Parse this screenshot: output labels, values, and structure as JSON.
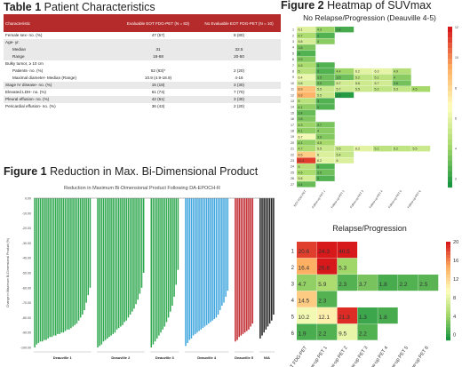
{
  "table1": {
    "title_bold": "Table 1",
    "title_rest": " Patient Characteristics",
    "headers": [
      "Characteristic",
      "Evaluable EOT FDG-PET (N = 83)",
      "No Evaluable EOT FDG-PET (N = 10)"
    ],
    "rows": [
      {
        "label": "Female sex- no. (%)",
        "a": "47 (57)",
        "b": "8 (80)"
      },
      {
        "label": "Age- yr.",
        "a": "",
        "b": ""
      },
      {
        "label": "Median",
        "a": "31",
        "b": "32.5",
        "sub": true
      },
      {
        "label": "Range",
        "a": "18-68",
        "b": "20-50",
        "sub": true
      },
      {
        "label": "Bulky tumor, ≥ 10 cm",
        "a": "",
        "b": ""
      },
      {
        "label": "Patients- no. (%)",
        "a": "52 (63)*",
        "b": "2 (20)",
        "sub": true
      },
      {
        "label": "Maximal diameter- Median (Range)",
        "a": "10.9 (4.9-18.9)",
        "b": "4-16",
        "sub": true
      },
      {
        "label": "Stage IV disease- no. (%)",
        "a": "15 (18)",
        "b": "3 (30)"
      },
      {
        "label": "Elevated LDH- no. (%)",
        "a": "61 (74)",
        "b": "7 (70)"
      },
      {
        "label": "Pleural effusion- no. (%)",
        "a": "42 (51)",
        "b": "3 (30)"
      },
      {
        "label": "Pericardial effusion- no. (%)",
        "a": "36 (43)",
        "b": "2 (20)"
      }
    ]
  },
  "fig1": {
    "title_bold": "Figure 1",
    "title_rest": " Reduction in Max. Bi-Dimensional Product",
    "chart_title": "Reduction in Maximum Bi-Dimensional Product Following DA-EPOCH-R",
    "ylabel": "Change in Maximum Bi-Dimensional Product (%)",
    "yticks": [
      "0.00",
      "-10.00",
      "-20.00",
      "-30.00",
      "-40.00",
      "-50.00",
      "-60.00",
      "-70.00",
      "-80.00",
      "-90.00",
      "-100.00"
    ],
    "groups": [
      {
        "label": "Deauville 1",
        "color": "#2fa84f",
        "values": [
          -100,
          -98,
          -97,
          -96,
          -96,
          -95,
          -95,
          -94,
          -93,
          -93,
          -92,
          -92,
          -91,
          -91,
          -90,
          -90,
          -89,
          -88,
          -88,
          -87,
          -86,
          -85,
          -84,
          -82,
          -80,
          -78,
          -75,
          -70,
          -65,
          -60
        ]
      },
      {
        "label": "Deauville 2",
        "color": "#2fa84f",
        "values": [
          -100,
          -99,
          -98,
          -96,
          -95,
          -94,
          -93,
          -92,
          -91,
          -90,
          -88,
          -87,
          -86,
          -85,
          -83,
          -82,
          -80,
          -78,
          -76,
          -74,
          -71,
          -68,
          -64,
          -60,
          -50
        ]
      },
      {
        "label": "Deauville 3",
        "color": "#2fa84f",
        "values": [
          -100,
          -98,
          -96,
          -94,
          -92,
          -90,
          -88,
          -86,
          -83,
          -80,
          -76,
          -72,
          -66,
          -58,
          -48
        ]
      },
      {
        "label": "Deauville 4",
        "color": "#3fa6de",
        "values": [
          -99,
          -97,
          -95,
          -94,
          -92,
          -91,
          -90,
          -89,
          -88,
          -87,
          -86,
          -85,
          -84,
          -83,
          -82,
          -81,
          -80,
          -78,
          -75,
          -72,
          -70,
          -66,
          -62
        ]
      },
      {
        "label": "Deauville 5",
        "color": "#c0282d",
        "values": [
          -96,
          -95,
          -93,
          -92,
          -91,
          -90,
          -89,
          -88,
          -86,
          -84
        ]
      },
      {
        "label": "N/A",
        "color": "#222222",
        "values": [
          -94,
          -92,
          -90,
          -88,
          -86,
          -84,
          -82,
          -78
        ]
      }
    ]
  },
  "fig2": {
    "title_bold": "Figure 2",
    "title_rest": " Heatmap of SUVmax",
    "top_title": "No Relapse/Progression (Deauville 4-5)",
    "bottom_title": "Relapse/Progression",
    "columns": [
      "EOT FDG-PET",
      "Follow-up PET 1",
      "Follow-up PET 2",
      "Follow-up PET 3",
      "Follow-up PET 4",
      "Follow-up PET 5",
      "Follow-up PET 6"
    ],
    "top_rows": [
      "1",
      "2",
      "3",
      "4",
      "5",
      "6",
      "7",
      "8",
      "9",
      "10",
      "11",
      "12",
      "13",
      "14",
      "15",
      "16",
      "17",
      "18",
      "19",
      "20",
      "21",
      "22",
      "23",
      "24",
      "25",
      "26",
      "27"
    ],
    "top_values": [
      [
        6.1,
        4.3,
        2.8
      ],
      [
        4.7,
        3.0
      ],
      [
        5.8,
        4.0
      ],
      [
        3.8
      ],
      [
        3.0
      ],
      [
        3.9
      ],
      [
        4.6,
        3.0
      ],
      [
        5.0,
        3.0,
        4.4,
        6.2,
        6.3,
        4.9
      ],
      [
        6.4,
        3.5,
        3.5,
        5.2,
        5.1,
        4.0
      ],
      [
        5.8,
        3.5,
        5.7,
        5.6,
        5.7,
        3.6
      ],
      [
        8.9,
        5.5,
        5.7,
        5.5,
        5.2,
        5.3,
        4.5
      ],
      [
        9.3,
        5.5,
        2.2
      ],
      [
        5.0,
        3.0
      ],
      [
        4.1,
        3.0
      ],
      [
        3.4
      ],
      [
        3.8
      ],
      [
        4.3,
        3.7
      ],
      [
        4.1,
        4.0
      ],
      [
        6.7,
        3.9
      ],
      [
        4.1,
        4.5
      ],
      [
        4.7,
        5.5,
        5.5,
        6.2,
        5.1,
        5.2,
        5.5
      ],
      [
        8.5,
        6.0,
        5.4
      ],
      [
        11.4,
        6.2,
        6.0
      ],
      [
        5.0,
        3.0
      ],
      [
        4.6,
        3.5
      ],
      [
        5.8,
        3.0
      ],
      [
        3.4
      ]
    ],
    "bottom_rows": [
      "1",
      "2",
      "3",
      "4",
      "5",
      "6"
    ],
    "bottom_values": [
      [
        20.6,
        24.3,
        40.5
      ],
      [
        16.4,
        26.8,
        5.3
      ],
      [
        4.7,
        5.9,
        2.3,
        3.7,
        1.8,
        2.2,
        2.5
      ],
      [
        14.5,
        2.3
      ],
      [
        10.2,
        12.1,
        21.3,
        1.3,
        1.8
      ],
      [
        1.9,
        2.2,
        9.5,
        2.2
      ]
    ],
    "top_legend": [
      "12",
      "10",
      "8",
      "6",
      "4",
      "2"
    ],
    "bottom_legend": [
      "20",
      "16",
      "12",
      "8",
      "4",
      "0"
    ]
  }
}
